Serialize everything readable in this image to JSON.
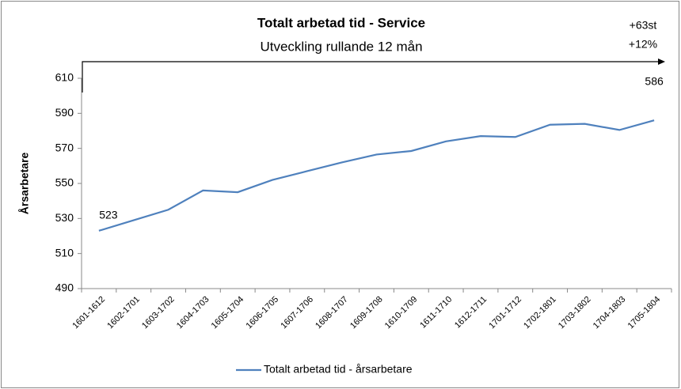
{
  "chart_data": {
    "type": "line",
    "title": "Totalt arbetad tid - Service",
    "subtitle": "Utveckling rullande 12 mån",
    "y_label": "Årsarbetare",
    "annotations": [
      "+63st",
      "+12%"
    ],
    "categories": [
      "1601-1612",
      "1602-1701",
      "1603-1702",
      "1604-1703",
      "1605-1704",
      "1606-1705",
      "1607-1706",
      "1608-1707",
      "1609-1708",
      "1610-1709",
      "1611-1710",
      "1612-1711",
      "1701-1712",
      "1702-1801",
      "1703-1802",
      "1704-1803",
      "1705-1804"
    ],
    "series": [
      {
        "name": "Totalt arbetad tid -  årsarbetare",
        "color": "#4f81bd",
        "values": [
          523,
          529,
          535,
          546,
          545,
          552,
          557,
          562,
          566.5,
          568.5,
          574,
          577,
          576.5,
          583.5,
          584,
          580.5,
          586
        ]
      }
    ],
    "ylim": [
      490,
      610
    ],
    "yticks": [
      490,
      510,
      530,
      550,
      570,
      590,
      610
    ],
    "grid": false
  }
}
